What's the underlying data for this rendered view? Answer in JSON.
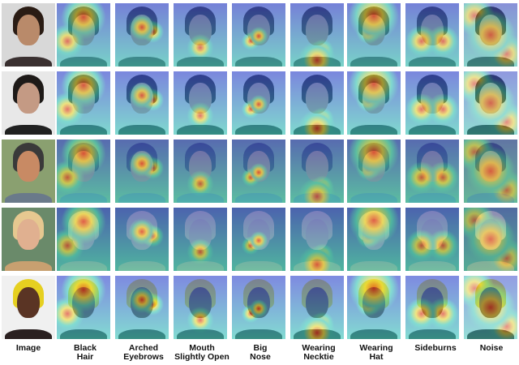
{
  "columns": [
    {
      "label": "Image"
    },
    {
      "label": "Black\nHair"
    },
    {
      "label": "Arched\nEyebrows"
    },
    {
      "label": "Mouth\nSlightly Open"
    },
    {
      "label": "Big\nNose"
    },
    {
      "label": "Wearing\nNecktie"
    },
    {
      "label": "Wearing\nHat"
    },
    {
      "label": "Sideburns"
    },
    {
      "label": "Noise"
    }
  ],
  "rows": [
    {
      "subject": "man-profile",
      "skin": "#b98a6a",
      "hair": "#2a1c14",
      "bg": "#d8d8d8",
      "clothes": "#3a3030"
    },
    {
      "subject": "man-portrait",
      "skin": "#c49a84",
      "hair": "#1e1a18",
      "bg": "#e8e8e8",
      "clothes": "#202020"
    },
    {
      "subject": "man-with-hat",
      "skin": "#c88a64",
      "hair": "#3a3a3a",
      "bg": "#8aa070",
      "clothes": "#6a7a8a"
    },
    {
      "subject": "blonde-woman",
      "skin": "#e0b090",
      "hair": "#e6c890",
      "bg": "#6a8a6a",
      "clothes": "#c8a070"
    },
    {
      "subject": "woman-yellow-cap",
      "skin": "#5a3424",
      "hair": "#e6d020",
      "bg": "#f0f0f0",
      "clothes": "#2a2020"
    }
  ],
  "heat_palette": {
    "low": "#3a4cd8",
    "mid": "#40d0c0",
    "high": "#f0e040",
    "peak": "#e03020"
  }
}
